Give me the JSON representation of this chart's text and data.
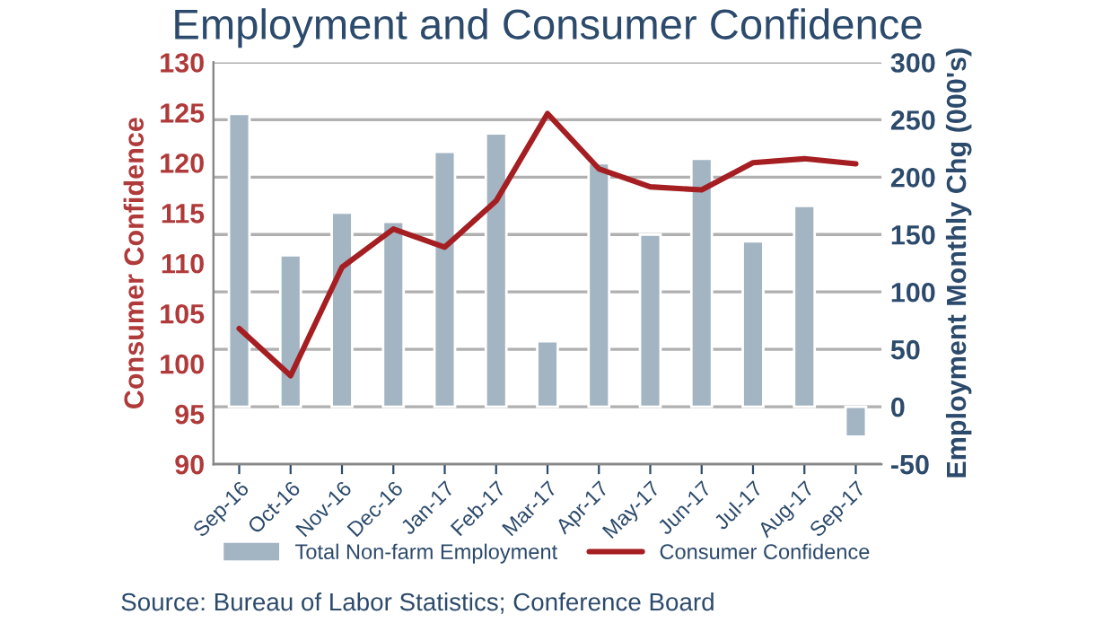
{
  "chart_data": {
    "type": "bar",
    "title": "Employment and Consumer Confidence",
    "categories": [
      "Sep-16",
      "Oct-16",
      "Nov-16",
      "Dec-16",
      "Jan-17",
      "Feb-17",
      "Mar-17",
      "Apr-17",
      "May-17",
      "Jun-17",
      "Jul-17",
      "Aug-17",
      "Sep-17"
    ],
    "series": [
      {
        "name": "Total Non-farm Employment",
        "color": "#a3b4c2",
        "axis": "y2",
        "values": [
          255,
          132,
          169,
          161,
          222,
          238,
          57,
          212,
          150,
          216,
          144,
          175,
          -26
        ]
      },
      {
        "name": "Consumer Confidence",
        "color": "#a51e22",
        "type": "line",
        "values": [
          103.5,
          98.8,
          109.6,
          113.4,
          111.6,
          116.2,
          124.9,
          119.4,
          117.6,
          117.3,
          120.0,
          120.4,
          119.9
        ]
      }
    ],
    "ylabel": "Consumer Confidence",
    "y2label": "Employment Monthly Chg (000's)",
    "ylim": [
      90,
      130
    ],
    "yticks": [
      90,
      95,
      100,
      105,
      110,
      115,
      120,
      125,
      130
    ],
    "y2lim": [
      -50,
      300
    ],
    "y2ticks": [
      -50,
      0,
      50,
      100,
      150,
      200,
      250,
      300
    ],
    "grid": "y",
    "legend": "bottom",
    "annotations": [
      "Source: Bureau of Labor Statistics; Conference Board"
    ]
  }
}
